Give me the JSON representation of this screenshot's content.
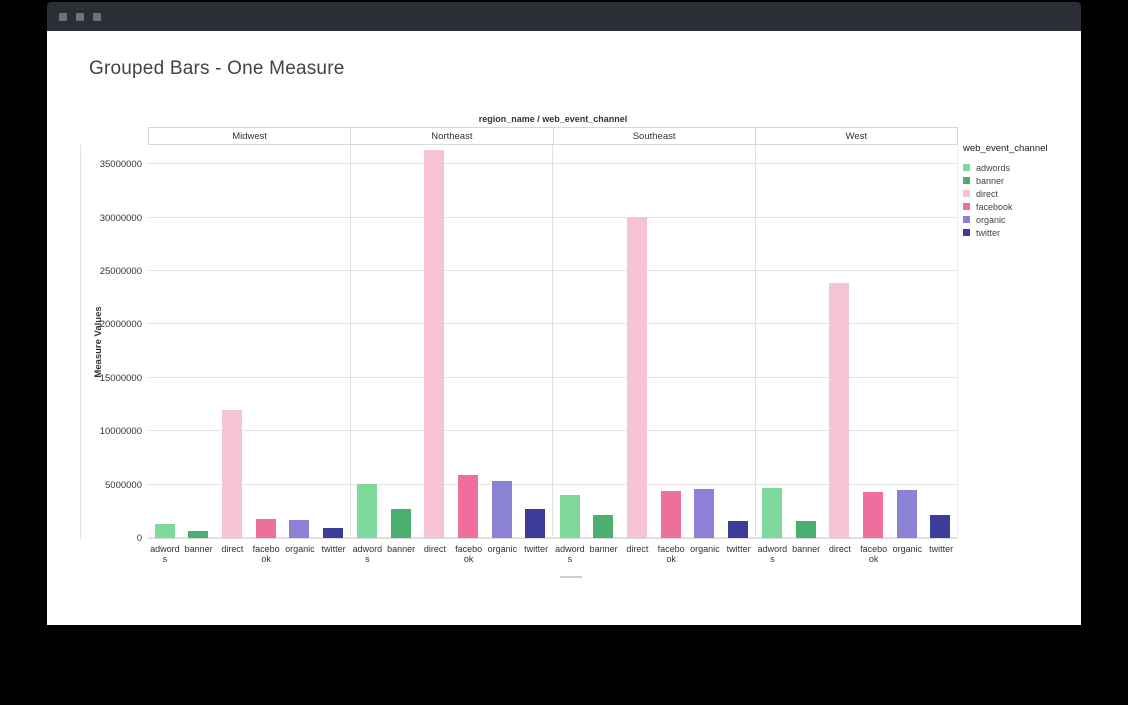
{
  "window": {
    "controls": [
      "window-control-1",
      "window-control-2",
      "window-control-3"
    ]
  },
  "page_title": "Grouped Bars - One Measure",
  "chart_data": {
    "type": "bar",
    "title": "region_name / web_event_channel",
    "ylabel": "Measure Values",
    "legend_title": "web_event_channel",
    "ylim": [
      0,
      36900000
    ],
    "yticks": [
      0,
      5000000,
      10000000,
      15000000,
      20000000,
      25000000,
      30000000,
      35000000
    ],
    "grid": true,
    "legend_position": "right",
    "panels": [
      "Midwest",
      "Northeast",
      "Southeast",
      "West"
    ],
    "x_tick_labels": [
      "adword\ns",
      "banner",
      "direct",
      "facebo\nok",
      "organic",
      "twitter"
    ],
    "channels": [
      {
        "name": "adwords",
        "color": "#7fd89b",
        "values": [
          1300000,
          5100000,
          4000000,
          4700000
        ]
      },
      {
        "name": "banner",
        "color": "#4caf72",
        "values": [
          700000,
          2700000,
          2200000,
          1600000
        ]
      },
      {
        "name": "direct",
        "color": "#f6c3d3",
        "values": [
          12000000,
          36300000,
          30100000,
          23900000
        ]
      },
      {
        "name": "facebook",
        "color": "#ee6f9e",
        "values": [
          1800000,
          5900000,
          4400000,
          4300000
        ]
      },
      {
        "name": "organic",
        "color": "#8b82d5",
        "values": [
          1700000,
          5300000,
          4600000,
          4500000
        ]
      },
      {
        "name": "twitter",
        "color": "#3b3d99",
        "values": [
          900000,
          2700000,
          1600000,
          2200000
        ]
      }
    ]
  }
}
